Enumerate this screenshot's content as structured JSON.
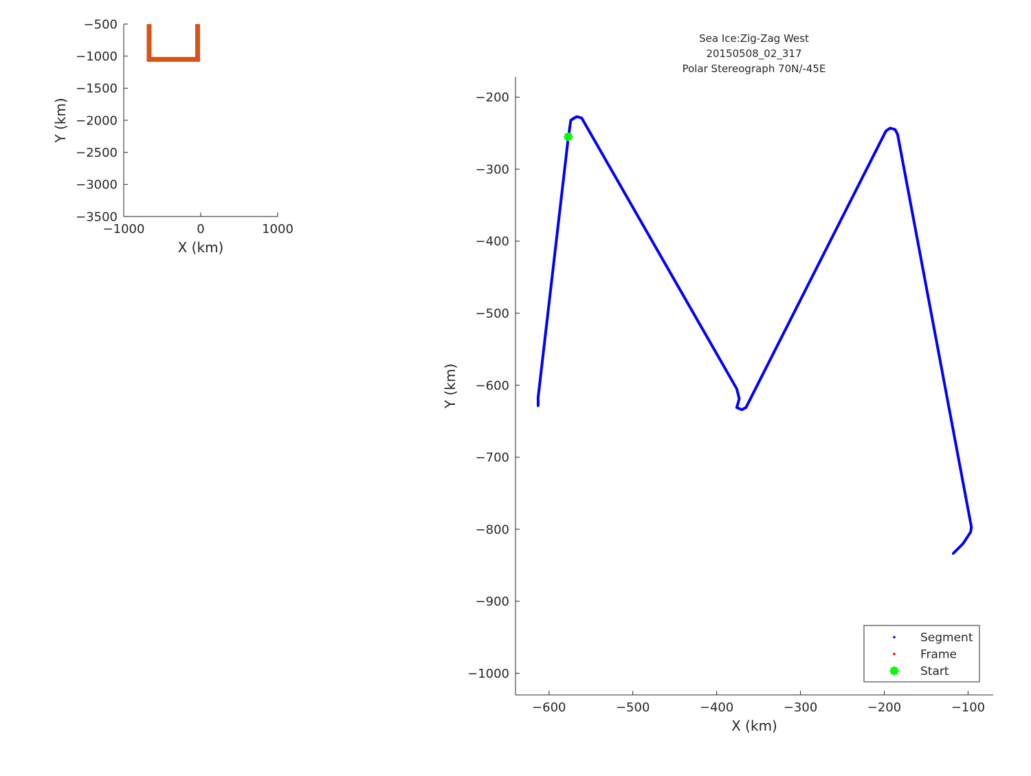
{
  "chart_data": [
    {
      "type": "line",
      "title": "",
      "xlabel": "X (km)",
      "ylabel": "Y (km)",
      "xlim": [
        -1000,
        1000
      ],
      "ylim": [
        -3500,
        -500
      ],
      "xticks": [
        -1000,
        0,
        1000
      ],
      "yticks": [
        -500,
        -1000,
        -1500,
        -2000,
        -2500,
        -3000,
        -3500
      ],
      "grid": false,
      "series": [
        {
          "color": "#d95319",
          "x": [
            -670,
            -670,
            -40,
            -40
          ],
          "y": [
            -500,
            -1050,
            -1050,
            -500
          ]
        }
      ]
    },
    {
      "type": "scatter",
      "title": [
        "Sea Ice:Zig-Zag West",
        "20150508_02_317",
        "Polar Stereograph 70N/-45E"
      ],
      "xlabel": "X (km)",
      "ylabel": "Y (km)",
      "xlim": [
        -640,
        -70
      ],
      "ylim": [
        -1030,
        -172
      ],
      "xticks": [
        -600,
        -500,
        -400,
        -300,
        -200,
        -100
      ],
      "yticks": [
        -200,
        -300,
        -400,
        -500,
        -600,
        -700,
        -800,
        -900,
        -1000
      ],
      "grid": false,
      "legend": {
        "placement": "bottom-right",
        "entries": [
          {
            "name": "Segment",
            "color": "#0000ff",
            "marker": "dot"
          },
          {
            "name": "Frame",
            "color": "#ff0000",
            "marker": "dot"
          },
          {
            "name": "Start",
            "color": "#00ff00",
            "marker": "star"
          }
        ]
      },
      "series": [
        {
          "name": "Segment",
          "color": "#0000ff",
          "x": [
            -613,
            -613,
            -577,
            -574,
            -567,
            -561,
            -376,
            -373,
            -376,
            -370,
            -365,
            -198,
            -193,
            -187,
            -184,
            -96,
            -97,
            -106,
            -118
          ],
          "y": [
            -629,
            -617,
            -256,
            -232,
            -227,
            -229,
            -605,
            -619,
            -631,
            -634,
            -631,
            -247,
            -243,
            -245,
            -252,
            -797,
            -804,
            -820,
            -834
          ]
        },
        {
          "name": "Start",
          "color": "#00ff00",
          "x": [
            -577
          ],
          "y": [
            -255
          ]
        }
      ]
    }
  ]
}
